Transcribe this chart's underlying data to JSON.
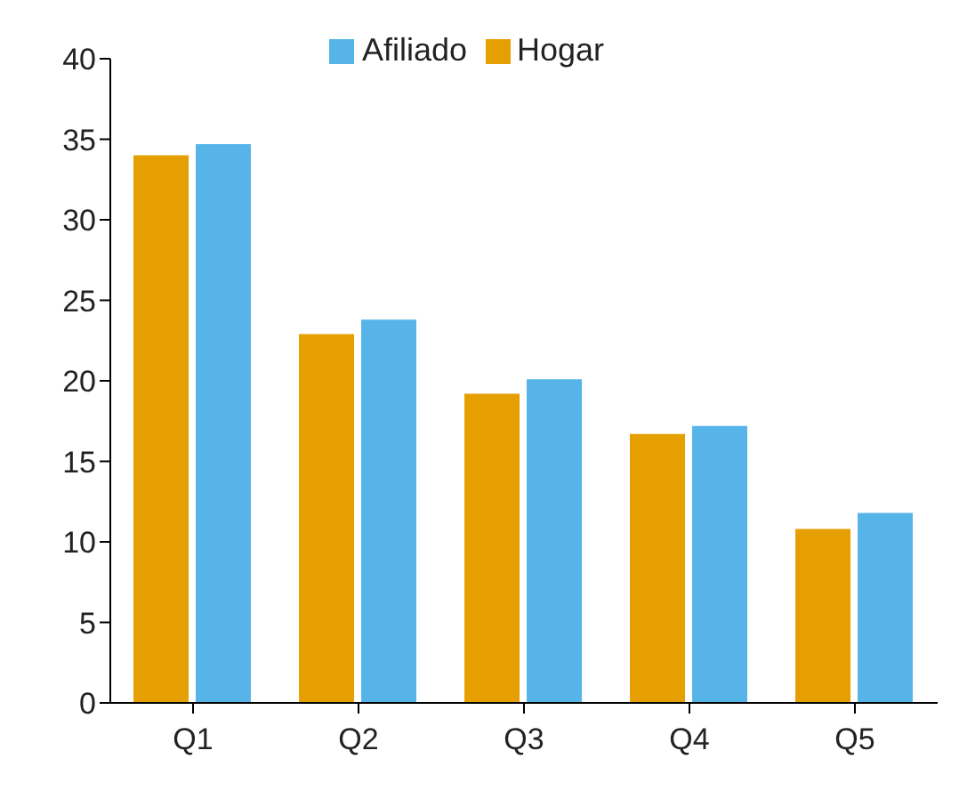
{
  "chart_data": {
    "type": "bar",
    "categories": [
      "Q1",
      "Q2",
      "Q3",
      "Q4",
      "Q5"
    ],
    "series": [
      {
        "name": "Hogar",
        "color": "#e69f00",
        "values": [
          34.0,
          22.9,
          19.2,
          16.7,
          10.8
        ]
      },
      {
        "name": "Afiliado",
        "color": "#56b4e9",
        "values": [
          34.7,
          23.8,
          20.1,
          17.2,
          11.8
        ]
      }
    ],
    "ylim": [
      0,
      40
    ],
    "yticks": [
      0,
      5,
      10,
      15,
      20,
      25,
      30,
      35,
      40
    ],
    "grid": false,
    "legend": "top"
  }
}
